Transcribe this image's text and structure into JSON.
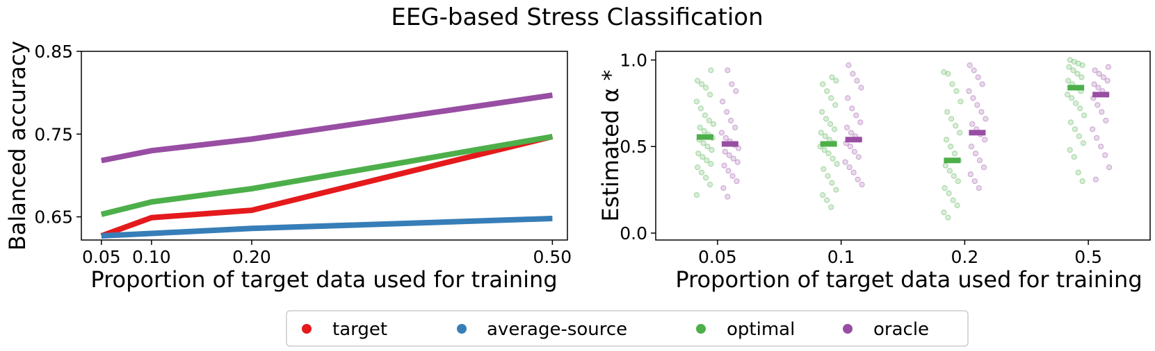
{
  "title": "EEG-based Stress Classification",
  "colors": {
    "target": "#e41a1c",
    "average_source": "#377eb8",
    "optimal": "#4daf4a",
    "oracle": "#984ea3"
  },
  "legend": {
    "placement": "bottom-center",
    "items": [
      {
        "label": "target",
        "color": "#e41a1c"
      },
      {
        "label": "average-source",
        "color": "#377eb8"
      },
      {
        "label": "optimal",
        "color": "#4daf4a"
      },
      {
        "label": "oracle",
        "color": "#984ea3"
      }
    ]
  },
  "chart_data": [
    {
      "type": "line",
      "xlabel": "Proportion of target data used for training",
      "ylabel": "Balanced accuracy",
      "x": [
        0.05,
        0.1,
        0.2,
        0.5
      ],
      "xticks": [
        "0.05",
        "0.10",
        "0.20",
        "0.50"
      ],
      "yticks": [
        "0.65",
        "0.75",
        "0.85"
      ],
      "ytick_values": [
        0.65,
        0.75,
        0.85
      ],
      "xlim": [
        0.03,
        0.515
      ],
      "ylim": [
        0.622,
        0.85
      ],
      "grid": false,
      "series": [
        {
          "name": "target",
          "color": "#e41a1c",
          "values": [
            0.627,
            0.649,
            0.658,
            0.747
          ]
        },
        {
          "name": "average-source",
          "color": "#377eb8",
          "values": [
            0.627,
            0.63,
            0.636,
            0.648
          ]
        },
        {
          "name": "optimal",
          "color": "#4daf4a",
          "values": [
            0.653,
            0.668,
            0.684,
            0.747
          ]
        },
        {
          "name": "oracle",
          "color": "#984ea3",
          "values": [
            0.718,
            0.73,
            0.744,
            0.797
          ]
        }
      ]
    },
    {
      "type": "scatter",
      "xlabel": "Proportion of target data used for training",
      "ylabel": "Estimated α *",
      "categories": [
        "0.05",
        "0.1",
        "0.2",
        "0.5"
      ],
      "yticks": [
        "0.0",
        "0.5",
        "1.0"
      ],
      "ytick_values": [
        0.0,
        0.5,
        1.0
      ],
      "ylim": [
        -0.04,
        1.05
      ],
      "grid": false,
      "series": [
        {
          "name": "optimal",
          "color": "#4daf4a",
          "means": [
            0.555,
            0.515,
            0.42,
            0.84
          ],
          "points": [
            [
              0.22,
              0.28,
              0.32,
              0.35,
              0.38,
              0.4,
              0.42,
              0.44,
              0.46,
              0.48,
              0.5,
              0.52,
              0.54,
              0.55,
              0.57,
              0.59,
              0.61,
              0.63,
              0.65,
              0.68,
              0.72,
              0.76,
              0.8,
              0.84,
              0.86,
              0.88,
              0.94
            ],
            [
              0.15,
              0.19,
              0.22,
              0.25,
              0.29,
              0.33,
              0.37,
              0.4,
              0.43,
              0.46,
              0.48,
              0.5,
              0.52,
              0.54,
              0.56,
              0.58,
              0.6,
              0.63,
              0.66,
              0.7,
              0.74,
              0.78,
              0.82,
              0.86,
              0.88,
              0.9
            ],
            [
              0.09,
              0.12,
              0.16,
              0.19,
              0.23,
              0.26,
              0.3,
              0.33,
              0.36,
              0.39,
              0.42,
              0.46,
              0.5,
              0.54,
              0.58,
              0.62,
              0.66,
              0.7,
              0.76,
              0.82,
              0.86,
              0.92,
              0.93
            ],
            [
              0.3,
              0.35,
              0.44,
              0.48,
              0.52,
              0.56,
              0.6,
              0.64,
              0.68,
              0.72,
              0.75,
              0.78,
              0.8,
              0.82,
              0.84,
              0.86,
              0.88,
              0.9,
              0.92,
              0.94,
              0.96,
              0.97,
              0.98,
              0.99,
              1.0
            ]
          ]
        },
        {
          "name": "oracle",
          "color": "#984ea3",
          "means": [
            0.515,
            0.54,
            0.58,
            0.8
          ],
          "points": [
            [
              0.21,
              0.26,
              0.3,
              0.33,
              0.36,
              0.39,
              0.41,
              0.43,
              0.45,
              0.47,
              0.49,
              0.51,
              0.53,
              0.55,
              0.58,
              0.61,
              0.65,
              0.7,
              0.76,
              0.82,
              0.86,
              0.94
            ],
            [
              0.28,
              0.31,
              0.35,
              0.38,
              0.41,
              0.44,
              0.47,
              0.5,
              0.52,
              0.54,
              0.56,
              0.58,
              0.61,
              0.64,
              0.68,
              0.72,
              0.78,
              0.84,
              0.88,
              0.92,
              0.97
            ],
            [
              0.26,
              0.3,
              0.34,
              0.38,
              0.42,
              0.46,
              0.5,
              0.54,
              0.57,
              0.6,
              0.63,
              0.66,
              0.7,
              0.74,
              0.78,
              0.82,
              0.86,
              0.9,
              0.94,
              0.97
            ],
            [
              0.31,
              0.38,
              0.45,
              0.5,
              0.55,
              0.6,
              0.65,
              0.7,
              0.74,
              0.78,
              0.8,
              0.82,
              0.84,
              0.86,
              0.88,
              0.9,
              0.92,
              0.94,
              0.96
            ]
          ]
        }
      ]
    }
  ]
}
